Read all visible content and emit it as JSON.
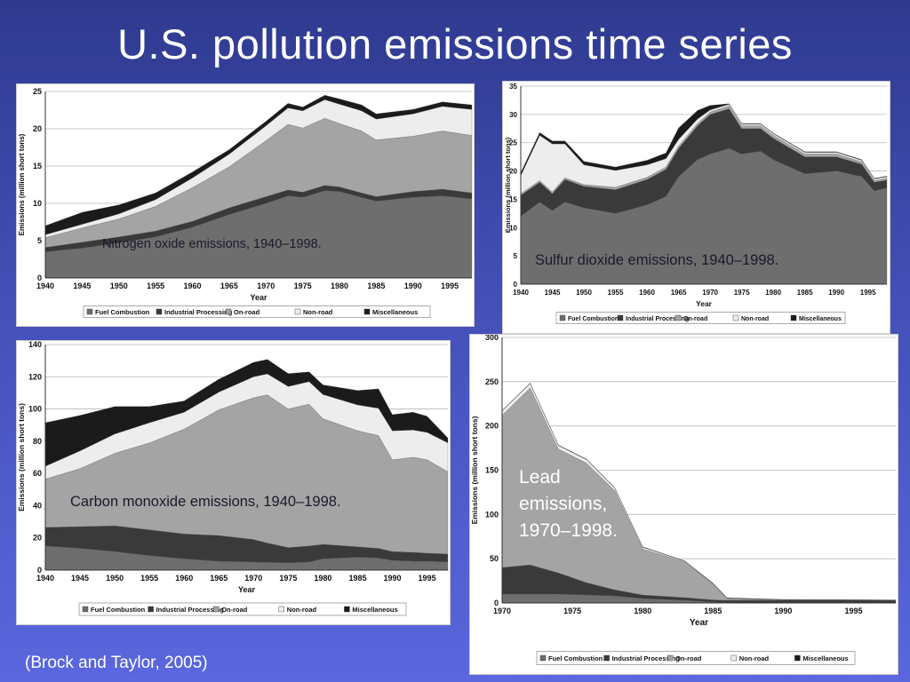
{
  "slide": {
    "title": "U.S. pollution emissions time series",
    "citation": "(Brock and Taylor, 2005)"
  },
  "legend_labels": [
    "Fuel Combustion",
    "Industrial Processing",
    "On-road",
    "Non-road",
    "Miscellaneous"
  ],
  "colors": {
    "fuel": "#6e6e6e",
    "industrial": "#3a3a3a",
    "onroad": "#a4a4a4",
    "nonroad": "#ededed",
    "misc": "#1b1b1b"
  },
  "chart_data": [
    {
      "id": "nox",
      "type": "area",
      "overlay_label": "Nitrogen oxide emissions, 1940–1998.",
      "ylabel": "Emissions (million short tons)",
      "xlabel": "Year",
      "xlim": [
        1940,
        1998
      ],
      "ylim": [
        0,
        25
      ],
      "yticks": [
        0,
        5,
        10,
        15,
        20,
        25
      ],
      "xticks": [
        1940,
        1945,
        1950,
        1955,
        1960,
        1965,
        1970,
        1975,
        1980,
        1985,
        1990,
        1995
      ],
      "x": [
        1940,
        1945,
        1950,
        1955,
        1960,
        1965,
        1970,
        1973,
        1975,
        1978,
        1980,
        1983,
        1985,
        1990,
        1994,
        1998
      ],
      "series": [
        {
          "name": "Fuel Combustion",
          "color_key": "fuel",
          "values": [
            3.5,
            4.0,
            4.7,
            5.5,
            6.8,
            8.5,
            10.0,
            11.0,
            10.8,
            11.7,
            11.6,
            10.8,
            10.3,
            10.8,
            11.0,
            10.6
          ]
        },
        {
          "name": "Industrial Processing",
          "color_key": "industrial",
          "values": [
            0.6,
            0.8,
            0.8,
            0.8,
            0.8,
            0.9,
            0.9,
            0.8,
            0.7,
            0.7,
            0.6,
            0.6,
            0.6,
            0.8,
            0.9,
            0.8
          ]
        },
        {
          "name": "On-road",
          "color_key": "onroad",
          "values": [
            1.3,
            1.9,
            2.4,
            3.3,
            4.5,
            5.5,
            7.5,
            8.8,
            8.6,
            9.0,
            8.5,
            8.3,
            7.6,
            7.4,
            7.8,
            7.7
          ]
        },
        {
          "name": "Non-road",
          "color_key": "nonroad",
          "values": [
            0.4,
            0.5,
            0.7,
            0.9,
            1.3,
            1.7,
            2.0,
            2.2,
            2.3,
            2.5,
            2.6,
            2.7,
            2.8,
            3.0,
            3.3,
            3.5
          ]
        },
        {
          "name": "Miscellaneous",
          "color_key": "misc",
          "values": [
            1.2,
            1.6,
            1.2,
            0.9,
            0.8,
            0.6,
            0.6,
            0.6,
            0.5,
            0.6,
            0.7,
            0.8,
            0.7,
            0.6,
            0.6,
            0.6
          ]
        }
      ]
    },
    {
      "id": "so2",
      "type": "area",
      "overlay_label": "Sulfur dioxide emissions, 1940–1998.",
      "ylabel": "Emissions (million short tons)",
      "xlabel": "Year",
      "xlim": [
        1940,
        1998
      ],
      "ylim": [
        0,
        35
      ],
      "yticks": [
        0,
        5,
        10,
        15,
        20,
        25,
        30,
        35
      ],
      "xticks": [
        1940,
        1945,
        1950,
        1955,
        1960,
        1965,
        1970,
        1975,
        1980,
        1985,
        1990,
        1995
      ],
      "x": [
        1940,
        1943,
        1945,
        1947,
        1950,
        1955,
        1960,
        1963,
        1965,
        1968,
        1970,
        1973,
        1975,
        1978,
        1980,
        1985,
        1990,
        1994,
        1996,
        1998
      ],
      "series": [
        {
          "name": "Fuel Combustion",
          "color_key": "fuel",
          "values": [
            12.0,
            14.5,
            13.0,
            14.5,
            13.5,
            12.5,
            14.0,
            15.5,
            19.0,
            22.0,
            23.0,
            24.0,
            23.0,
            23.5,
            22.0,
            19.5,
            20.0,
            19.0,
            16.5,
            17.0
          ]
        },
        {
          "name": "Industrial Processing",
          "color_key": "industrial",
          "values": [
            3.7,
            3.5,
            3.0,
            4.0,
            3.8,
            4.2,
            4.5,
            4.8,
            5.0,
            6.0,
            7.0,
            7.0,
            4.5,
            4.0,
            3.8,
            3.0,
            2.5,
            2.2,
            1.5,
            1.4
          ]
        },
        {
          "name": "On-road",
          "color_key": "onroad",
          "values": [
            0.3,
            0.3,
            0.3,
            0.3,
            0.3,
            0.4,
            0.4,
            0.4,
            0.4,
            0.4,
            0.4,
            0.5,
            0.5,
            0.5,
            0.5,
            0.5,
            0.5,
            0.4,
            0.3,
            0.3
          ]
        },
        {
          "name": "Non-road",
          "color_key": "nonroad",
          "values": [
            3.2,
            8.0,
            8.5,
            6.0,
            3.5,
            3.0,
            2.2,
            1.5,
            1.2,
            0.8,
            0.4,
            0.3,
            0.3,
            0.3,
            0.3,
            0.3,
            0.3,
            0.3,
            0.3,
            0.3
          ]
        },
        {
          "name": "Miscellaneous",
          "color_key": "misc",
          "values": [
            0.5,
            0.5,
            0.5,
            0.5,
            0.6,
            0.6,
            0.8,
            1.0,
            2.0,
            1.5,
            0.8,
            0.1,
            0.1,
            0.1,
            0.1,
            0.1,
            0.1,
            0.1,
            0.1,
            0.1
          ]
        }
      ]
    },
    {
      "id": "co",
      "type": "area",
      "overlay_label": "Carbon monoxide emissions, 1940–1998.",
      "ylabel": "Emissions (million short tons)",
      "xlabel": "Year",
      "xlim": [
        1940,
        1998
      ],
      "ylim": [
        0,
        140
      ],
      "yticks": [
        0,
        20,
        40,
        60,
        80,
        100,
        120,
        140
      ],
      "xticks": [
        1940,
        1945,
        1950,
        1955,
        1960,
        1965,
        1970,
        1975,
        1980,
        1985,
        1990,
        1995
      ],
      "x": [
        1940,
        1945,
        1950,
        1955,
        1960,
        1965,
        1970,
        1972,
        1975,
        1978,
        1980,
        1985,
        1988,
        1990,
        1993,
        1995,
        1998
      ],
      "series": [
        {
          "name": "Fuel Combustion",
          "color_key": "fuel",
          "values": [
            15.0,
            13.5,
            11.5,
            9.0,
            7.0,
            5.5,
            5.0,
            4.8,
            4.5,
            5.0,
            7.0,
            8.0,
            7.5,
            6.0,
            5.5,
            5.5,
            5.0
          ]
        },
        {
          "name": "Industrial Processing",
          "color_key": "industrial",
          "values": [
            11.5,
            13.5,
            16.0,
            16.0,
            15.5,
            16.0,
            14.0,
            12.0,
            9.5,
            10.0,
            9.0,
            6.5,
            6.0,
            5.5,
            5.5,
            5.0,
            5.0
          ]
        },
        {
          "name": "On-road",
          "color_key": "onroad",
          "values": [
            30.0,
            36.0,
            45.0,
            54.0,
            65.0,
            78.0,
            88.0,
            92.0,
            86.0,
            88.0,
            78.0,
            72.0,
            70.0,
            57.0,
            59.0,
            58.0,
            51.0
          ]
        },
        {
          "name": "Non-road",
          "color_key": "nonroad",
          "values": [
            8.0,
            11.0,
            12.0,
            12.5,
            10.5,
            11.0,
            13.0,
            13.0,
            14.0,
            14.0,
            15.0,
            16.0,
            17.0,
            18.0,
            17.0,
            17.0,
            18.0
          ]
        },
        {
          "name": "Miscellaneous",
          "color_key": "misc",
          "values": [
            27.0,
            22.0,
            17.0,
            10.0,
            7.0,
            8.0,
            9.0,
            9.0,
            8.0,
            6.0,
            6.0,
            9.0,
            12.0,
            10.0,
            11.0,
            10.0,
            3.0
          ]
        }
      ]
    },
    {
      "id": "lead",
      "type": "area",
      "overlay_label": "Lead emissions, 1970–1998.",
      "ylabel": "Emissions (million short tons)",
      "xlabel": "Year",
      "xlim": [
        1970,
        1998
      ],
      "ylim": [
        0,
        300
      ],
      "yticks": [
        0,
        50,
        100,
        150,
        200,
        250,
        300
      ],
      "xticks": [
        1970,
        1975,
        1980,
        1985,
        1990,
        1995
      ],
      "x": [
        1970,
        1972,
        1974,
        1976,
        1978,
        1980,
        1983,
        1985,
        1986,
        1990,
        1998
      ],
      "series": [
        {
          "name": "Fuel Combustion",
          "color_key": "fuel",
          "values": [
            10.0,
            10.0,
            10.0,
            9.0,
            8.0,
            5.0,
            3.0,
            1.0,
            0.5,
            0.5,
            0.5
          ]
        },
        {
          "name": "Industrial Processing",
          "color_key": "industrial",
          "values": [
            30.0,
            33.0,
            24.0,
            14.0,
            7.0,
            4.0,
            3.0,
            2.5,
            2.5,
            2.5,
            2.5
          ]
        },
        {
          "name": "On-road",
          "color_key": "onroad",
          "values": [
            172.0,
            200.0,
            140.0,
            135.0,
            112.0,
            52.0,
            40.0,
            18.0,
            2.0,
            0.5,
            0.1
          ]
        },
        {
          "name": "Non-road",
          "color_key": "nonroad",
          "values": [
            5.0,
            5.0,
            4.0,
            4.0,
            3.0,
            2.0,
            1.0,
            0.5,
            0.3,
            0.2,
            0.1
          ]
        },
        {
          "name": "Miscellaneous",
          "color_key": "misc",
          "values": [
            0.5,
            0.5,
            0.5,
            0.5,
            0.5,
            0.5,
            0.5,
            0.5,
            0.5,
            0.3,
            0.2
          ]
        }
      ]
    }
  ]
}
